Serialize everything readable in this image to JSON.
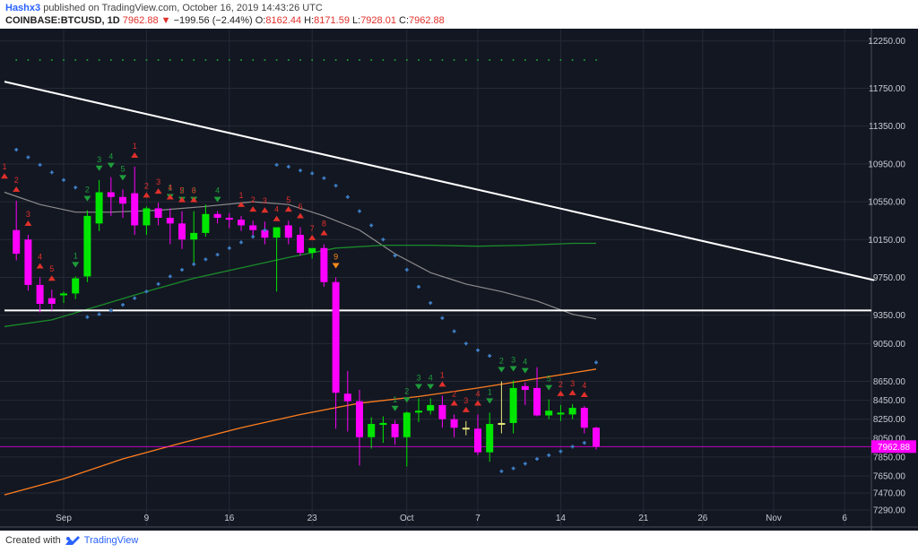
{
  "header": {
    "author": "Hashx3",
    "published_text": " published on TradingView.com, October 16, 2019 14:43:26 UTC",
    "symbol": "COINBASE:BTCUSD, 1D",
    "last": "7962.88",
    "change_arrow": "▼",
    "change": "−199.56 (−2.44%)",
    "o_label": "O:",
    "o_val": "8162.44",
    "h_label": "H:",
    "h_val": "8171.59",
    "l_label": "L:",
    "l_val": "7928.01",
    "c_label": "C:",
    "c_val": "7962.88"
  },
  "footer": {
    "created_with": "Created with",
    "brand": "TradingView",
    "logo_icon": "tradingview-logo-icon"
  },
  "colors": {
    "background": "#131722",
    "up": "#00e600",
    "down": "#ff00ff",
    "neutral": "#e6e67a",
    "sar": "#3e80c8",
    "ma_gray": "#8c8c8c",
    "ma_green": "#1a8c2a",
    "ma_orange": "#ff7e1f",
    "trendline": "#ffffff",
    "td_green": "#1e9e3a",
    "td_red": "#e0302a",
    "price_tag": "#ff00ff",
    "last_line": "#ff00ff"
  },
  "chart_data": {
    "type": "candlestick",
    "title": "COINBASE:BTCUSD, 1D",
    "last_price_label": "7962.88",
    "ylim": [
      7110,
      12380
    ],
    "y_ticks": [
      "12250.00",
      "11750.00",
      "11350.00",
      "10950.00",
      "10550.00",
      "10150.00",
      "9750.00",
      "9350.00",
      "9050.00",
      "8650.00",
      "8450.00",
      "8250.00",
      "8050.00",
      "7850.00",
      "7650.00",
      "7470.00",
      "7290.00"
    ],
    "x_ticks": [
      {
        "label": "Sep",
        "day": 5
      },
      {
        "label": "9",
        "day": 12
      },
      {
        "label": "16",
        "day": 19
      },
      {
        "label": "23",
        "day": 26
      },
      {
        "label": "Oct",
        "day": 34
      },
      {
        "label": "7",
        "day": 40
      },
      {
        "label": "14",
        "day": 47
      },
      {
        "label": "21",
        "day": 54
      },
      {
        "label": "26",
        "day": 59
      },
      {
        "label": "Nov",
        "day": 65
      },
      {
        "label": "6",
        "day": 71
      }
    ],
    "candles": [
      {
        "day": 1,
        "o": 10250,
        "h": 10560,
        "l": 9930,
        "c": 10000
      },
      {
        "day": 2,
        "o": 10150,
        "h": 10200,
        "l": 9610,
        "c": 9670
      },
      {
        "day": 3,
        "o": 9670,
        "h": 9750,
        "l": 9380,
        "c": 9470
      },
      {
        "day": 4,
        "o": 9530,
        "h": 9620,
        "l": 9400,
        "c": 9470
      },
      {
        "day": 5,
        "o": 9560,
        "h": 9600,
        "l": 9480,
        "c": 9580
      },
      {
        "day": 6,
        "o": 9580,
        "h": 9760,
        "l": 9520,
        "c": 9740
      },
      {
        "day": 7,
        "o": 9760,
        "h": 10460,
        "l": 9700,
        "c": 10400
      },
      {
        "day": 8,
        "o": 10320,
        "h": 10780,
        "l": 10240,
        "c": 10650
      },
      {
        "day": 9,
        "o": 10650,
        "h": 10810,
        "l": 10400,
        "c": 10600
      },
      {
        "day": 10,
        "o": 10600,
        "h": 10680,
        "l": 10380,
        "c": 10530
      },
      {
        "day": 11,
        "o": 10640,
        "h": 10920,
        "l": 10200,
        "c": 10300
      },
      {
        "day": 12,
        "o": 10300,
        "h": 10500,
        "l": 10200,
        "c": 10480
      },
      {
        "day": 13,
        "o": 10480,
        "h": 10540,
        "l": 10300,
        "c": 10380
      },
      {
        "day": 14,
        "o": 10380,
        "h": 10480,
        "l": 10100,
        "c": 10320
      },
      {
        "day": 15,
        "o": 10320,
        "h": 10450,
        "l": 10050,
        "c": 10150
      },
      {
        "day": 16,
        "o": 10150,
        "h": 10450,
        "l": 9890,
        "c": 10220
      },
      {
        "day": 17,
        "o": 10220,
        "h": 10520,
        "l": 10180,
        "c": 10420
      },
      {
        "day": 18,
        "o": 10420,
        "h": 10450,
        "l": 10320,
        "c": 10380
      },
      {
        "day": 19,
        "o": 10380,
        "h": 10430,
        "l": 10270,
        "c": 10360
      },
      {
        "day": 20,
        "o": 10360,
        "h": 10400,
        "l": 10240,
        "c": 10300
      },
      {
        "day": 21,
        "o": 10300,
        "h": 10350,
        "l": 10160,
        "c": 10250
      },
      {
        "day": 22,
        "o": 10250,
        "h": 10340,
        "l": 10100,
        "c": 10170
      },
      {
        "day": 23,
        "o": 10170,
        "h": 10250,
        "l": 9600,
        "c": 10280
      },
      {
        "day": 24,
        "o": 10300,
        "h": 10350,
        "l": 10100,
        "c": 10170
      },
      {
        "day": 25,
        "o": 10200,
        "h": 10280,
        "l": 9980,
        "c": 10010
      },
      {
        "day": 26,
        "o": 10010,
        "h": 10050,
        "l": 9950,
        "c": 10060
      },
      {
        "day": 27,
        "o": 10060,
        "h": 10100,
        "l": 9650,
        "c": 9700
      },
      {
        "day": 28,
        "o": 9700,
        "h": 9750,
        "l": 8150,
        "c": 8530
      },
      {
        "day": 29,
        "o": 8520,
        "h": 8760,
        "l": 8120,
        "c": 8440
      },
      {
        "day": 30,
        "o": 8440,
        "h": 8560,
        "l": 7760,
        "c": 8060
      },
      {
        "day": 31,
        "o": 8060,
        "h": 8270,
        "l": 7940,
        "c": 8200
      },
      {
        "day": 32,
        "o": 8190,
        "h": 8280,
        "l": 8000,
        "c": 8210
      },
      {
        "day": 33,
        "o": 8200,
        "h": 8240,
        "l": 7980,
        "c": 8060
      },
      {
        "day": 34,
        "o": 8060,
        "h": 8330,
        "l": 7750,
        "c": 8320
      },
      {
        "day": 35,
        "o": 8320,
        "h": 8470,
        "l": 8220,
        "c": 8340
      },
      {
        "day": 36,
        "o": 8340,
        "h": 8470,
        "l": 8300,
        "c": 8400
      },
      {
        "day": 37,
        "o": 8400,
        "h": 8500,
        "l": 8160,
        "c": 8250
      },
      {
        "day": 38,
        "o": 8250,
        "h": 8300,
        "l": 8060,
        "c": 8160
      },
      {
        "day": 39,
        "o": 8160,
        "h": 8230,
        "l": 8080,
        "c": 8150
      },
      {
        "day": 40,
        "o": 8150,
        "h": 8300,
        "l": 7870,
        "c": 7900
      },
      {
        "day": 41,
        "o": 7900,
        "h": 8320,
        "l": 7800,
        "c": 8200
      },
      {
        "day": 42,
        "o": 8200,
        "h": 8650,
        "l": 8100,
        "c": 8210
      },
      {
        "day": 43,
        "o": 8210,
        "h": 8660,
        "l": 8100,
        "c": 8580
      },
      {
        "day": 44,
        "o": 8600,
        "h": 8640,
        "l": 8400,
        "c": 8560
      },
      {
        "day": 45,
        "o": 8580,
        "h": 8800,
        "l": 8280,
        "c": 8290
      },
      {
        "day": 46,
        "o": 8290,
        "h": 8460,
        "l": 8250,
        "c": 8340
      },
      {
        "day": 47,
        "o": 8300,
        "h": 8400,
        "l": 8230,
        "c": 8320
      },
      {
        "day": 48,
        "o": 8300,
        "h": 8410,
        "l": 8250,
        "c": 8370
      },
      {
        "day": 49,
        "o": 8370,
        "h": 8390,
        "l": 8100,
        "c": 8160
      },
      {
        "day": 50,
        "o": 8160,
        "h": 8170,
        "l": 7930,
        "c": 7960
      }
    ],
    "sar": [
      [
        1,
        11100
      ],
      [
        2,
        11020
      ],
      [
        3,
        10940
      ],
      [
        4,
        10860
      ],
      [
        5,
        10780
      ],
      [
        6,
        10700
      ],
      [
        7,
        9330
      ],
      [
        8,
        9360
      ],
      [
        9,
        9400
      ],
      [
        10,
        9460
      ],
      [
        11,
        9530
      ],
      [
        12,
        9600
      ],
      [
        13,
        9680
      ],
      [
        14,
        9760
      ],
      [
        15,
        9830
      ],
      [
        16,
        9890
      ],
      [
        17,
        9940
      ],
      [
        18,
        9990
      ],
      [
        19,
        10060
      ],
      [
        20,
        10120
      ],
      [
        21,
        10180
      ],
      [
        22,
        10250
      ],
      [
        23,
        10940
      ],
      [
        24,
        10920
      ],
      [
        25,
        10880
      ],
      [
        26,
        10850
      ],
      [
        27,
        10800
      ],
      [
        28,
        10720
      ],
      [
        29,
        10600
      ],
      [
        30,
        10450
      ],
      [
        31,
        10300
      ],
      [
        32,
        10150
      ],
      [
        33,
        9980
      ],
      [
        34,
        9830
      ],
      [
        35,
        9650
      ],
      [
        36,
        9480
      ],
      [
        37,
        9320
      ],
      [
        38,
        9180
      ],
      [
        39,
        9050
      ],
      [
        40,
        8980
      ],
      [
        41,
        8920
      ],
      [
        42,
        7700
      ],
      [
        43,
        7730
      ],
      [
        44,
        7780
      ],
      [
        45,
        7830
      ],
      [
        46,
        7870
      ],
      [
        47,
        7910
      ],
      [
        48,
        7960
      ],
      [
        49,
        8000
      ],
      [
        50,
        8850
      ]
    ],
    "sar_dotted_level": 12050,
    "ma_gray": [
      [
        0,
        10650
      ],
      [
        3,
        10520
      ],
      [
        6,
        10440
      ],
      [
        9,
        10440
      ],
      [
        13,
        10460
      ],
      [
        17,
        10500
      ],
      [
        21,
        10550
      ],
      [
        24,
        10520
      ],
      [
        27,
        10400
      ],
      [
        30,
        10250
      ],
      [
        33,
        10000
      ],
      [
        36,
        9800
      ],
      [
        39,
        9680
      ],
      [
        42,
        9600
      ],
      [
        45,
        9500
      ],
      [
        48,
        9360
      ],
      [
        50,
        9310
      ]
    ],
    "ma_green": [
      [
        0,
        9230
      ],
      [
        4,
        9300
      ],
      [
        8,
        9450
      ],
      [
        12,
        9600
      ],
      [
        16,
        9740
      ],
      [
        20,
        9850
      ],
      [
        24,
        9960
      ],
      [
        28,
        10060
      ],
      [
        32,
        10090
      ],
      [
        36,
        10090
      ],
      [
        40,
        10080
      ],
      [
        44,
        10090
      ],
      [
        48,
        10110
      ],
      [
        50,
        10110
      ]
    ],
    "ma_orange": [
      [
        0,
        7450
      ],
      [
        5,
        7620
      ],
      [
        10,
        7830
      ],
      [
        15,
        8000
      ],
      [
        20,
        8160
      ],
      [
        25,
        8300
      ],
      [
        30,
        8420
      ],
      [
        35,
        8490
      ],
      [
        40,
        8580
      ],
      [
        45,
        8680
      ],
      [
        50,
        8780
      ]
    ],
    "trendline": [
      [
        0,
        11820
      ],
      [
        73.5,
        9720
      ]
    ],
    "support_level": 9400,
    "td_green": [
      [
        6,
        1
      ],
      [
        7,
        2
      ],
      [
        8,
        3
      ],
      [
        9,
        4
      ],
      [
        10,
        5
      ],
      [
        14,
        1
      ],
      [
        15,
        2
      ],
      [
        16,
        3
      ],
      [
        18,
        4
      ],
      [
        33,
        1
      ],
      [
        34,
        2
      ],
      [
        35,
        3
      ],
      [
        36,
        4
      ],
      [
        41,
        1
      ],
      [
        42,
        2
      ],
      [
        43,
        3
      ],
      [
        44,
        4
      ],
      [
        46,
        5
      ]
    ],
    "td_red": [
      [
        0,
        1
      ],
      [
        1,
        2
      ],
      [
        2,
        3
      ],
      [
        3,
        4
      ],
      [
        4,
        5
      ],
      [
        11,
        1
      ],
      [
        12,
        2
      ],
      [
        13,
        3
      ],
      [
        14,
        4
      ],
      [
        15,
        5
      ],
      [
        16,
        6
      ],
      [
        20,
        1
      ],
      [
        21,
        2
      ],
      [
        22,
        3
      ],
      [
        23,
        4
      ],
      [
        24,
        5
      ],
      [
        25,
        6
      ],
      [
        26,
        7
      ],
      [
        27,
        8
      ],
      [
        37,
        1
      ],
      [
        38,
        2
      ],
      [
        39,
        3
      ],
      [
        40,
        4
      ],
      [
        47,
        2
      ],
      [
        48,
        3
      ],
      [
        49,
        4
      ]
    ],
    "td_orange": [
      [
        28,
        9
      ]
    ]
  }
}
